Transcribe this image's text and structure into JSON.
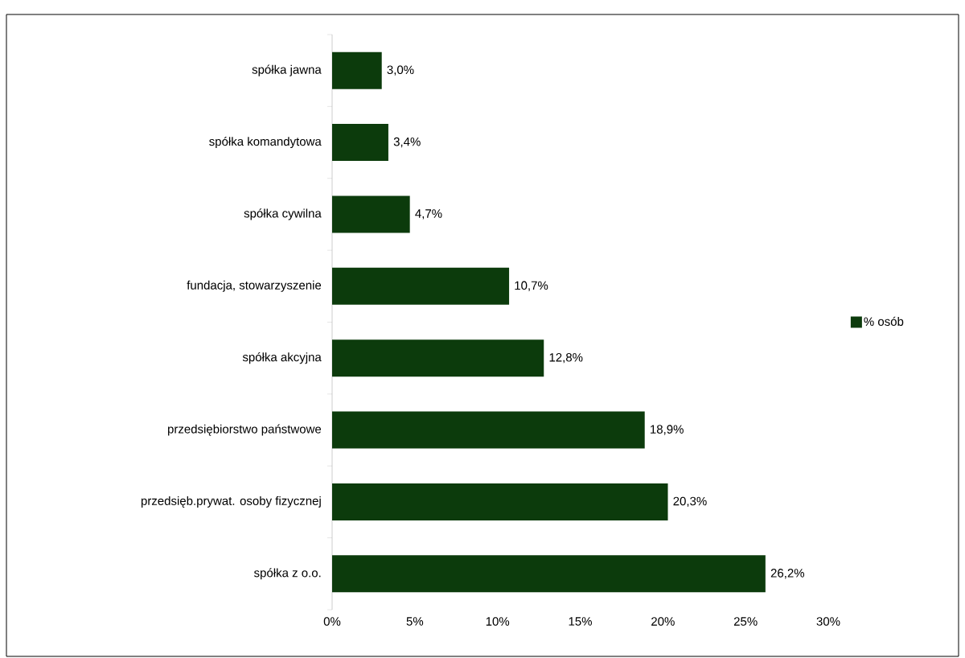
{
  "chart_data": {
    "type": "bar",
    "orientation": "horizontal",
    "categories": [
      "spółka jawna",
      "spółka komandytowa",
      "spółka cywilna",
      "fundacja, stowarzyszenie",
      "spółka akcyjna",
      "przedsiębiorstwo państwowe",
      "przedsięb.prywat. osoby fizycznej",
      "spółka z o.o."
    ],
    "series": [
      {
        "name": "% osób",
        "color": "#0c3b0c",
        "values": [
          3.0,
          3.4,
          4.7,
          10.7,
          12.8,
          18.9,
          20.3,
          26.2
        ],
        "value_labels": [
          "3,0%",
          "3,4%",
          "4,7%",
          "10,7%",
          "12,8%",
          "18,9%",
          "20,3%",
          "26,2%"
        ]
      }
    ],
    "xlim": [
      0,
      30
    ],
    "xticks": [
      {
        "value": 0,
        "label": "0%"
      },
      {
        "value": 5,
        "label": "5%"
      },
      {
        "value": 10,
        "label": "10%"
      },
      {
        "value": 15,
        "label": "15%"
      },
      {
        "value": 20,
        "label": "20%"
      },
      {
        "value": 25,
        "label": "25%"
      },
      {
        "value": 30,
        "label": "30%"
      }
    ],
    "grid": false,
    "legend": "right"
  }
}
